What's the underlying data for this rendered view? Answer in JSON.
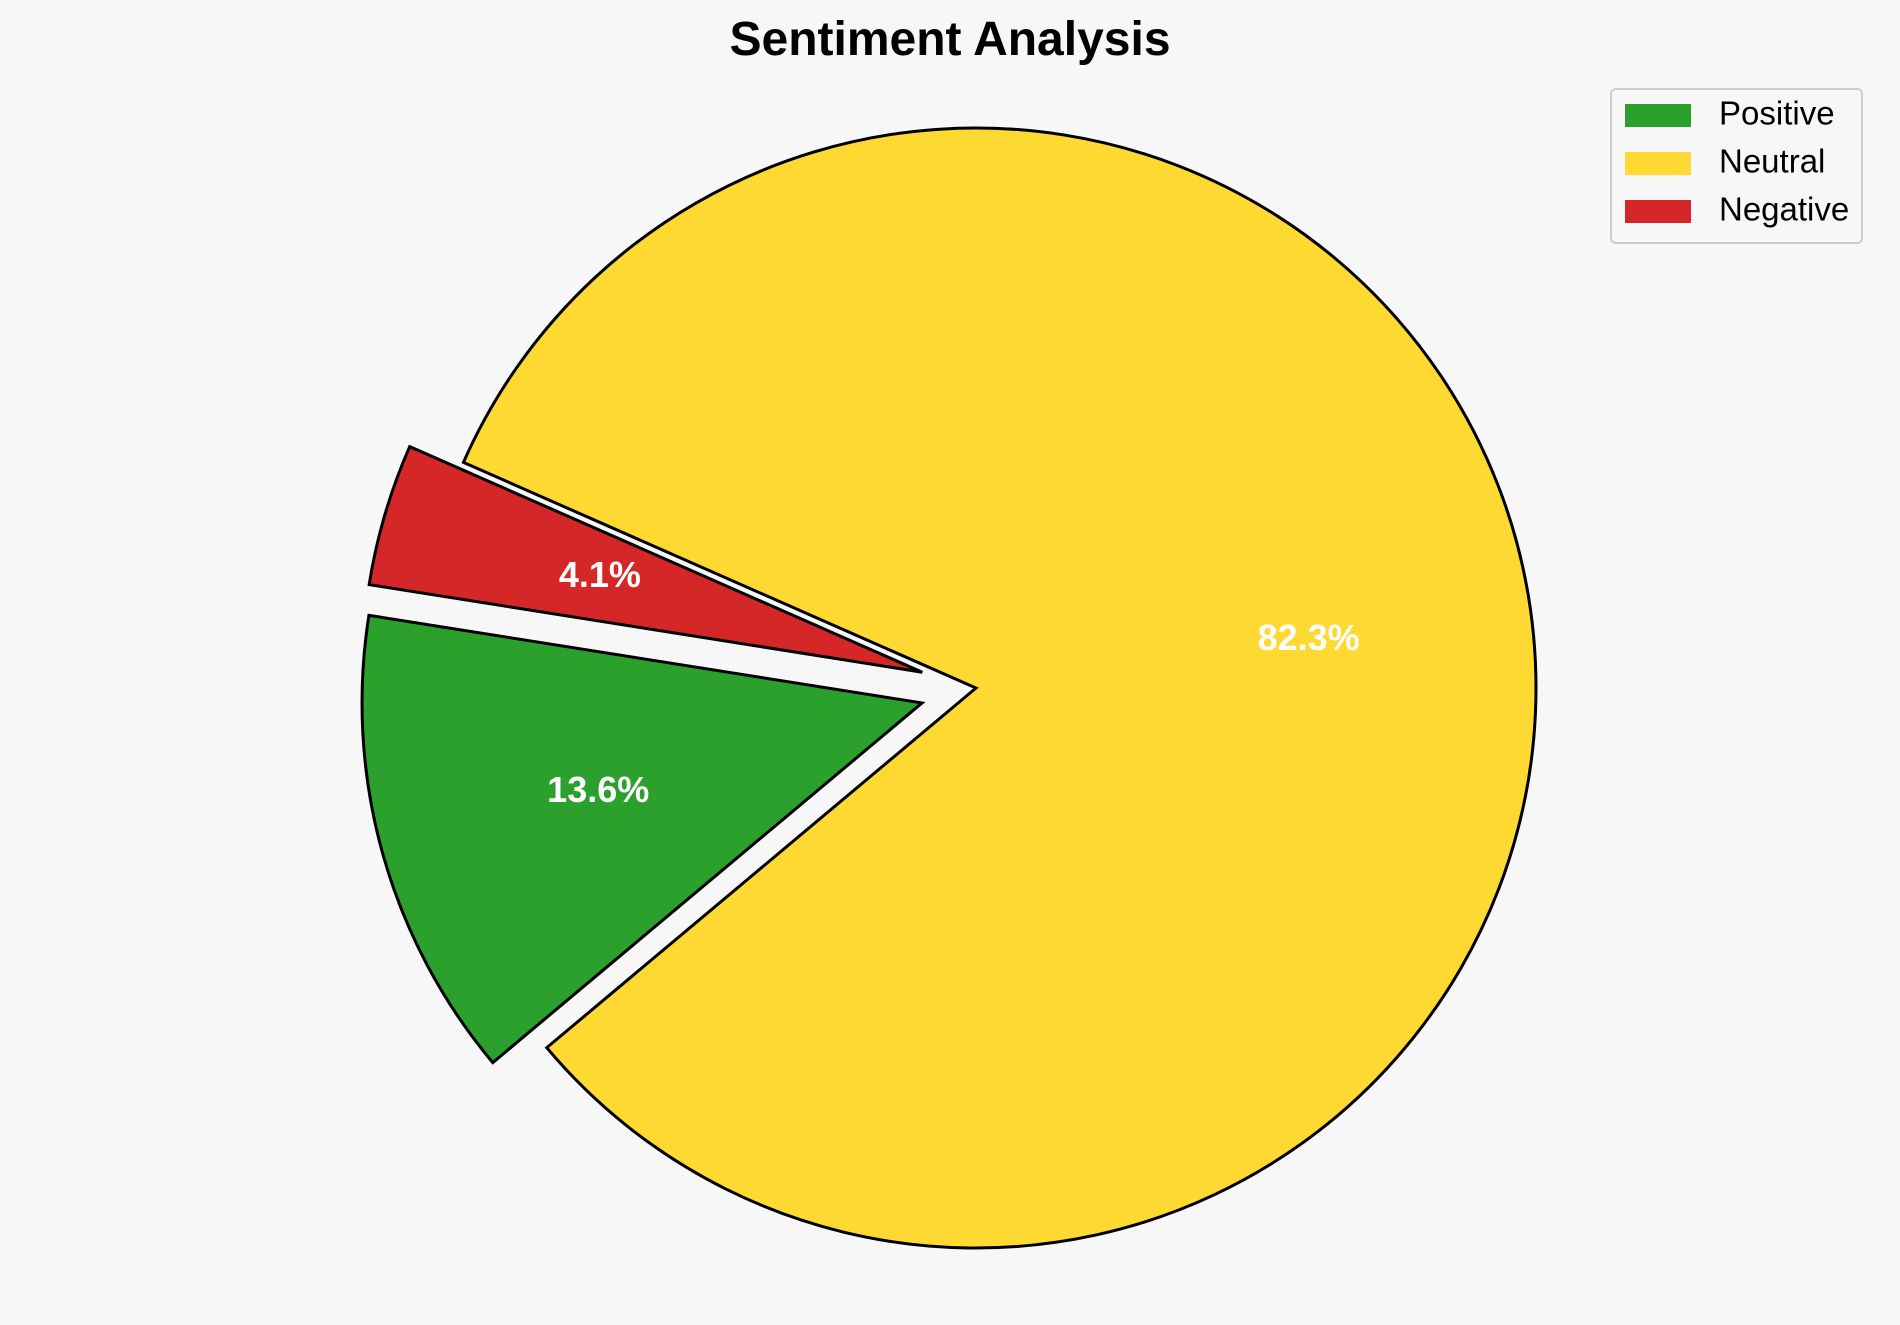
{
  "chart_data": {
    "type": "pie",
    "title": "Sentiment Analysis",
    "slices": [
      {
        "label": "Positive",
        "value": 13.6,
        "display": "13.6%",
        "color": "#2ca02c",
        "exploded": true
      },
      {
        "label": "Neutral",
        "value": 82.3,
        "display": "82.3%",
        "color": "#fdd931",
        "exploded": false
      },
      {
        "label": "Negative",
        "value": 4.1,
        "display": "4.1%",
        "color": "#d62728",
        "exploded": true
      }
    ],
    "legend_position": "top-right",
    "edge_color": "#000000",
    "label_color": "#ffffff"
  }
}
